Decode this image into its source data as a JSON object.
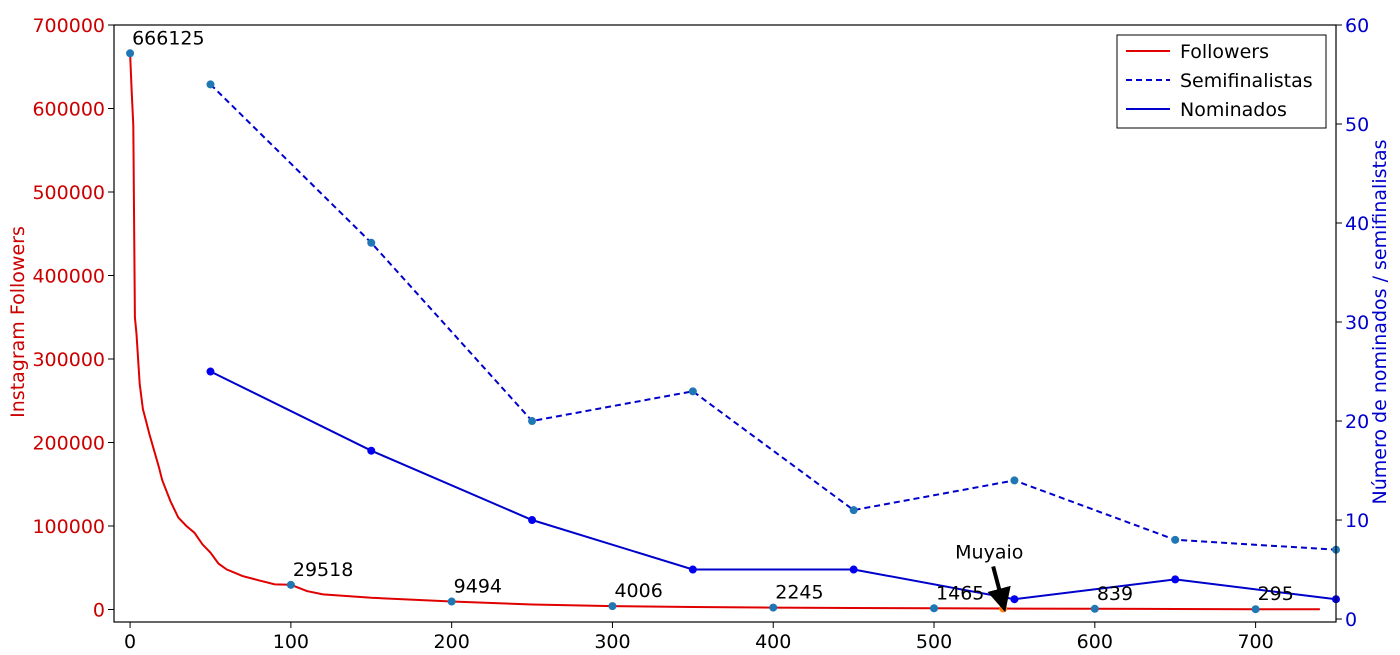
{
  "chart_data": {
    "type": "line",
    "x_axis": {
      "range": [
        -10,
        750
      ],
      "ticks": [
        0,
        100,
        200,
        300,
        400,
        500,
        600,
        700
      ],
      "tick_labels": [
        "0",
        "100",
        "200",
        "300",
        "400",
        "500",
        "600",
        "700"
      ]
    },
    "y_left": {
      "label": "Instagram Followers",
      "range": [
        -15000,
        700000
      ],
      "ticks": [
        0,
        100000,
        200000,
        300000,
        400000,
        500000,
        600000,
        700000
      ],
      "tick_labels": [
        "0",
        "100000",
        "200000",
        "300000",
        "400000",
        "500000",
        "600000",
        "700000"
      ],
      "color": "#cc0000"
    },
    "y_right": {
      "label": "Número de nominados / semifinalistas",
      "range": [
        -0.3,
        60
      ],
      "ticks": [
        0,
        10,
        20,
        30,
        40,
        50,
        60
      ],
      "tick_labels": [
        "0",
        "10",
        "20",
        "30",
        "40",
        "50",
        "60"
      ],
      "color": "#0000cc"
    },
    "series": [
      {
        "name": "Followers",
        "axis": "left",
        "color": "#e00000",
        "style": "solid",
        "x": [
          0,
          1,
          2,
          3,
          4,
          5,
          6,
          8,
          10,
          12,
          15,
          18,
          20,
          25,
          30,
          35,
          40,
          45,
          50,
          55,
          60,
          70,
          80,
          90,
          100,
          110,
          120,
          150,
          200,
          250,
          300,
          350,
          400,
          450,
          500,
          543,
          550,
          600,
          650,
          700,
          740
        ],
        "values": [
          666125,
          620000,
          580000,
          350000,
          330000,
          300000,
          270000,
          240000,
          225000,
          210000,
          190000,
          170000,
          155000,
          130000,
          110000,
          100000,
          92000,
          78000,
          68000,
          55000,
          48000,
          40000,
          35000,
          30000,
          29518,
          22000,
          18000,
          14000,
          9494,
          6000,
          4006,
          3000,
          2245,
          1800,
          1465,
          1200,
          1100,
          839,
          600,
          295,
          200
        ]
      },
      {
        "name": "Semifinalistas",
        "axis": "right",
        "color": "#0000cc",
        "style": "dashed",
        "x": [
          50,
          150,
          250,
          350,
          450,
          550,
          650,
          750
        ],
        "values": [
          54,
          38,
          20,
          23,
          11,
          14,
          8,
          7
        ]
      },
      {
        "name": "Nominados",
        "axis": "right",
        "color": "#0000cc",
        "style": "solid",
        "x": [
          50,
          150,
          250,
          350,
          450,
          550,
          650,
          750
        ],
        "values": [
          25,
          17,
          10,
          5,
          5,
          2,
          4,
          2
        ]
      }
    ],
    "marked_points": [
      {
        "x": 0,
        "value": 666125,
        "label": "666125"
      },
      {
        "x": 100,
        "value": 29518,
        "label": "29518"
      },
      {
        "x": 200,
        "value": 9494,
        "label": "9494"
      },
      {
        "x": 300,
        "value": 4006,
        "label": "4006"
      },
      {
        "x": 400,
        "value": 2245,
        "label": "2245"
      },
      {
        "x": 500,
        "value": 1465,
        "label": "1465"
      },
      {
        "x": 600,
        "value": 839,
        "label": "839"
      },
      {
        "x": 700,
        "value": 295,
        "label": "295"
      }
    ],
    "highlight": {
      "x": 543,
      "value": 1200,
      "label": "Muyaio",
      "color": "#ff7f0e"
    },
    "marker_color": "#1f77b4",
    "legend": {
      "position": "top-right",
      "entries": [
        "Followers",
        "Semifinalistas",
        "Nominados"
      ]
    },
    "grid": false
  }
}
